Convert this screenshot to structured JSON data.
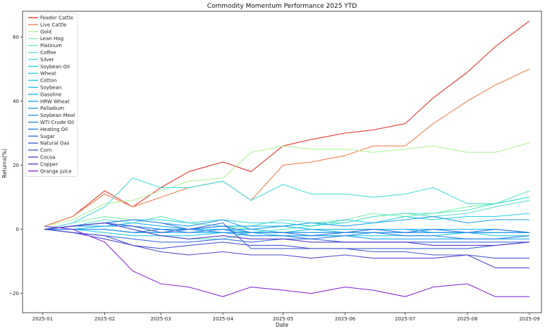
{
  "chart_data": {
    "type": "line",
    "title": "Commodity Momentum Performance 2025 YTD",
    "xlabel": "Date",
    "ylabel": "Returns(%)",
    "xlim": [
      "2024-12-22",
      "2025-09-07"
    ],
    "ylim": [
      -26,
      68
    ],
    "xticks": [
      "2025-01",
      "2025-02",
      "2025-03",
      "2025-04",
      "2025-05",
      "2025-06",
      "2025-07",
      "2025-08",
      "2025-09"
    ],
    "yticks": [
      -20,
      0,
      20,
      40,
      60
    ],
    "grid": false,
    "legend": "upper-left",
    "x": [
      "2025-01-02",
      "2025-01-16",
      "2025-02-01",
      "2025-02-15",
      "2025-03-01",
      "2025-03-15",
      "2025-04-01",
      "2025-04-15",
      "2025-05-01",
      "2025-05-15",
      "2025-06-01",
      "2025-06-15",
      "2025-07-01",
      "2025-07-15",
      "2025-08-01",
      "2025-08-15",
      "2025-09-01"
    ],
    "series": [
      {
        "name": "Feeder Cattle",
        "color": "#e8322d",
        "values": [
          1,
          4,
          12,
          7,
          13,
          18,
          21,
          18,
          26,
          28,
          30,
          31,
          33,
          41,
          49,
          57,
          65
        ]
      },
      {
        "name": "Live Cattle",
        "color": "#f0814f",
        "values": [
          1,
          4,
          11,
          7,
          10,
          13,
          15,
          9,
          20,
          21,
          23,
          26,
          26,
          33,
          40,
          45,
          50
        ]
      },
      {
        "name": "Gold",
        "color": "#b0f29c",
        "values": [
          1,
          3,
          8,
          9,
          12,
          15,
          16,
          24,
          26,
          25,
          25,
          24,
          25,
          26,
          24,
          24,
          27
        ]
      },
      {
        "name": "Lean Hog",
        "color": "#86f0b0",
        "values": [
          0,
          2,
          4,
          3,
          3,
          2,
          1,
          0,
          1,
          2,
          3,
          5,
          4,
          5,
          7,
          8,
          10
        ]
      },
      {
        "name": "Platinum",
        "color": "#66e8c7",
        "values": [
          0,
          1,
          2,
          0,
          -2,
          -3,
          -3,
          -1,
          0,
          1,
          2,
          4,
          5,
          5,
          6,
          8,
          12
        ]
      },
      {
        "name": "Coffee",
        "color": "#5fe0cf",
        "values": [
          0,
          1,
          3,
          2,
          4,
          2,
          1,
          1,
          3,
          2,
          2,
          4,
          5,
          4,
          5,
          7,
          9
        ]
      },
      {
        "name": "Silver",
        "color": "#48dcd8",
        "values": [
          0,
          2,
          7,
          16,
          13,
          13,
          15,
          9,
          14,
          11,
          11,
          10,
          11,
          13,
          8,
          8,
          10
        ]
      },
      {
        "name": "Soybean Oil",
        "color": "#37d3e0",
        "values": [
          0,
          1,
          2,
          3,
          3,
          2,
          3,
          2,
          2,
          1,
          3,
          2,
          4,
          3,
          4,
          4,
          5
        ]
      },
      {
        "name": "Wheat",
        "color": "#2ccde6",
        "values": [
          0,
          0,
          -1,
          -2,
          -2,
          -2,
          -1,
          -1,
          -2,
          -2,
          -2,
          -2,
          -2,
          -2,
          -1,
          -2,
          -2
        ]
      },
      {
        "name": "Cotton",
        "color": "#22c4ec",
        "values": [
          0,
          0,
          0,
          -1,
          -1,
          0,
          0,
          -1,
          -1,
          -1,
          -1,
          -1,
          -1,
          -1,
          -1,
          -1,
          -1
        ]
      },
      {
        "name": "Soybean",
        "color": "#1dbbef",
        "values": [
          0,
          0,
          1,
          1,
          0,
          0,
          0,
          0,
          -1,
          0,
          -1,
          0,
          0,
          -1,
          -1,
          -1,
          -1
        ]
      },
      {
        "name": "Gasoline",
        "color": "#1ab2f1",
        "values": [
          0,
          1,
          1,
          2,
          1,
          0,
          1,
          1,
          1,
          0,
          0,
          0,
          0,
          0,
          0,
          0,
          -1
        ]
      },
      {
        "name": "HRW Wheat",
        "color": "#1ea8f0",
        "values": [
          0,
          0,
          0,
          -1,
          -1,
          -1,
          -1,
          -2,
          -2,
          -2,
          -2,
          -3,
          -3,
          -3,
          -3,
          -3,
          -3
        ]
      },
      {
        "name": "Palladium",
        "color": "#249ded",
        "values": [
          0,
          1,
          2,
          3,
          2,
          1,
          3,
          0,
          1,
          2,
          1,
          2,
          3,
          4,
          2,
          3,
          3
        ]
      },
      {
        "name": "Soybean Meal",
        "color": "#2b92ea",
        "values": [
          0,
          0,
          0,
          -1,
          0,
          0,
          -1,
          -1,
          -1,
          -1,
          -1,
          -1,
          -1,
          -1,
          -1,
          -1,
          -1
        ]
      },
      {
        "name": "WTI Crude Oil",
        "color": "#3187e7",
        "values": [
          0,
          1,
          2,
          1,
          0,
          -1,
          0,
          -2,
          -2,
          -3,
          -2,
          -1,
          -2,
          -2,
          -3,
          -3,
          -2
        ]
      },
      {
        "name": "Heating Oil",
        "color": "#377ce3",
        "values": [
          0,
          1,
          2,
          3,
          2,
          0,
          1,
          -1,
          -1,
          -2,
          -1,
          0,
          -1,
          0,
          -1,
          0,
          -1
        ]
      },
      {
        "name": "Sugar",
        "color": "#3d70de",
        "values": [
          0,
          -1,
          -2,
          -3,
          -4,
          -4,
          -3,
          -4,
          -3,
          -3,
          -4,
          -4,
          -4,
          -4,
          -4,
          -4,
          -4
        ]
      },
      {
        "name": "Natural Gas",
        "color": "#4364d8",
        "values": [
          0,
          1,
          2,
          1,
          -1,
          0,
          2,
          -6,
          -6,
          -6,
          -6,
          -6,
          -6,
          -6,
          -6,
          -5,
          -4
        ]
      },
      {
        "name": "Corn",
        "color": "#4a57d2",
        "values": [
          0,
          -1,
          -2,
          -5,
          -6,
          -5,
          -4,
          -5,
          -5,
          -6,
          -6,
          -7,
          -7,
          -8,
          -8,
          -9,
          -9
        ]
      },
      {
        "name": "Cocoa",
        "color": "#5148cb",
        "values": [
          0,
          -1,
          -3,
          -5,
          -7,
          -8,
          -7,
          -8,
          -8,
          -9,
          -8,
          -9,
          -9,
          -9,
          -8,
          -12,
          -12
        ]
      },
      {
        "name": "Copper",
        "color": "#5a3cc4",
        "values": [
          0,
          1,
          2,
          0,
          -2,
          -3,
          -2,
          -3,
          -3,
          -4,
          -4,
          -4,
          -4,
          -5,
          -5,
          -5,
          -4
        ]
      },
      {
        "name": "Orange Juice",
        "color": "#8a2fd8",
        "values": [
          1,
          0,
          -4,
          -13,
          -17,
          -18,
          -21,
          -18,
          -19,
          -20,
          -18,
          -19,
          -21,
          -18,
          -17,
          -21,
          -21
        ]
      }
    ]
  }
}
